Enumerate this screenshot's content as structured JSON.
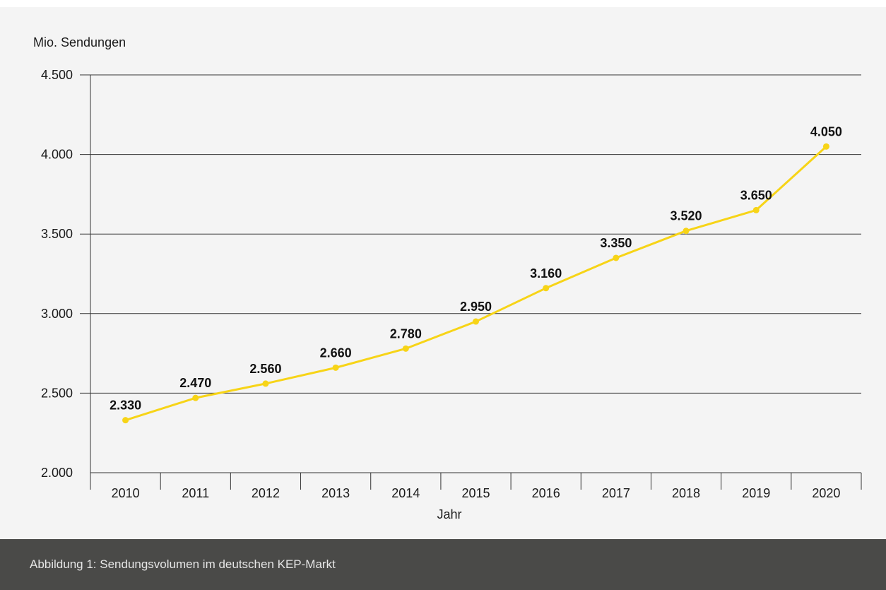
{
  "caption": "Abbildung 1: Sendungsvolumen im deutschen KEP-Markt",
  "chart_data": {
    "type": "line",
    "title": "",
    "xlabel": "Jahr",
    "ylabel": "Mio. Sendungen",
    "categories": [
      "2010",
      "2011",
      "2012",
      "2013",
      "2014",
      "2015",
      "2016",
      "2017",
      "2018",
      "2019",
      "2020"
    ],
    "series": [
      {
        "values": [
          2330,
          2470,
          2560,
          2660,
          2780,
          2950,
          3160,
          3350,
          3520,
          3650,
          4050
        ]
      }
    ],
    "value_labels": [
      "2.330",
      "2.470",
      "2.560",
      "2.660",
      "2.780",
      "2.950",
      "3.160",
      "3.350",
      "3.520",
      "3.650",
      "4.050"
    ],
    "ylim": [
      2000,
      4500
    ],
    "yticks": [
      2000,
      2500,
      3000,
      3500,
      4000,
      4500
    ],
    "ytick_labels": [
      "2.000",
      "2.500",
      "3.000",
      "3.500",
      "4.000",
      "4.500"
    ],
    "grid": "horizontal",
    "legend": "none",
    "colors": {
      "line": "#f7d417",
      "grid": "#333333",
      "axis": "#333333"
    }
  }
}
